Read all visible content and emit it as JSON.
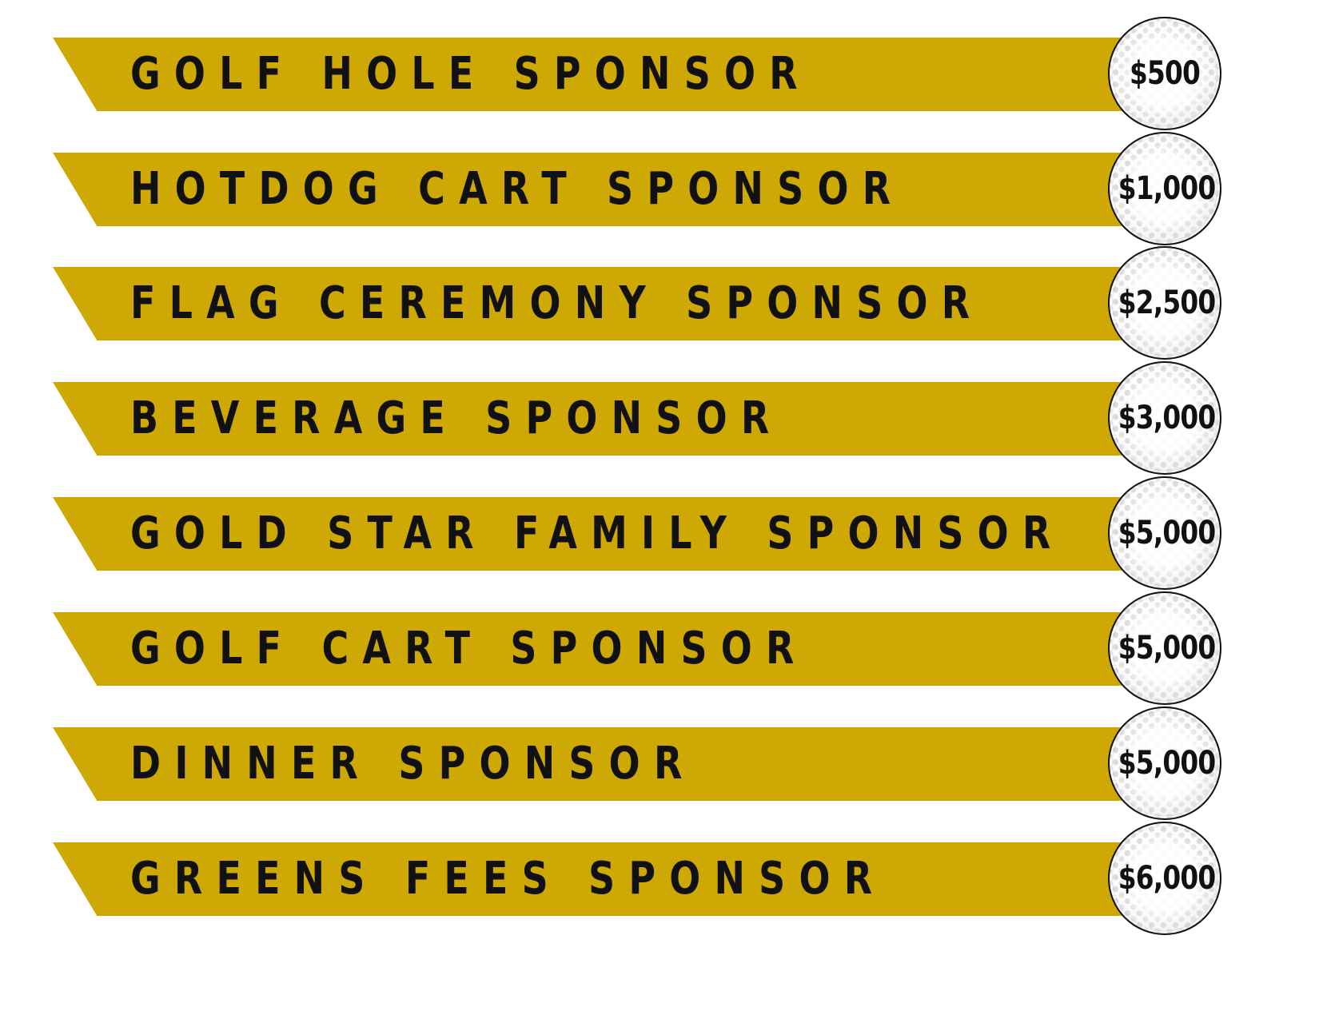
{
  "colors": {
    "ribbon": "#cea805",
    "text": "#111111",
    "background": "#ffffff",
    "ball": "#ffffff"
  },
  "icons": {
    "price_badge": "golf-ball-icon"
  },
  "tiers": [
    {
      "name": "GOLF HOLE SPONSOR",
      "price": "$500"
    },
    {
      "name": "HOTDOG CART SPONSOR",
      "price": "$1,000"
    },
    {
      "name": "FLAG CEREMONY SPONSOR",
      "price": "$2,500"
    },
    {
      "name": "BEVERAGE SPONSOR",
      "price": "$3,000"
    },
    {
      "name": "GOLD STAR FAMILY SPONSOR",
      "price": "$5,000"
    },
    {
      "name": "GOLF CART SPONSOR",
      "price": "$5,000"
    },
    {
      "name": "DINNER SPONSOR",
      "price": "$5,000"
    },
    {
      "name": "GREENS FEES SPONSOR",
      "price": "$6,000"
    }
  ]
}
